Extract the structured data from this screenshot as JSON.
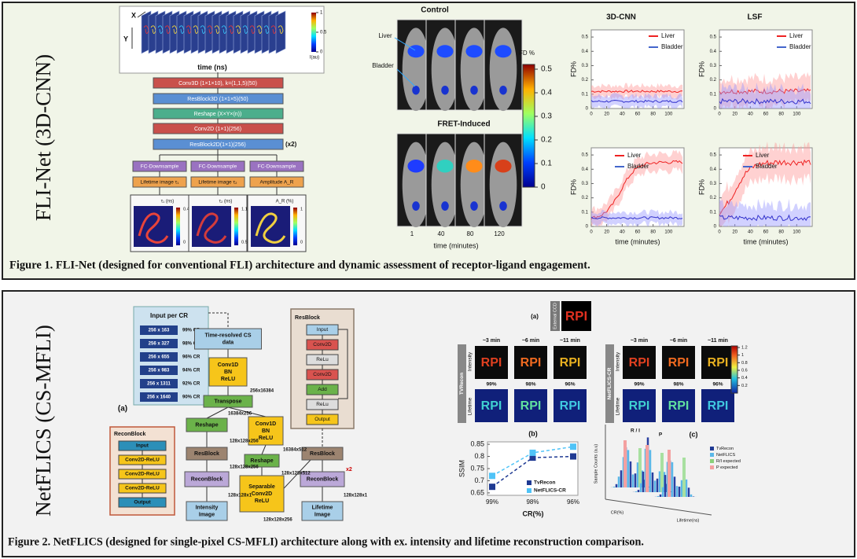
{
  "figure1": {
    "side_label": "FLI-Net (3D-CNN)",
    "caption": "Figure 1. FLI-Net (designed for conventional FLI) architecture and dynamic assessment of receptor-ligand engagement.",
    "architecture": {
      "input_axes": [
        "X",
        "Y"
      ],
      "input_xlabel": "time (ns)",
      "input_colorbar_label": "I(au)",
      "input_colorbar_ticks": [
        1,
        0.5,
        0
      ],
      "layers": [
        "Conv3D (1×1×10), k=(1,1,5)(50)",
        "ResBlock3D (1×1×5)(50)",
        "Reshape (X×Y×(n))",
        "Conv2D (1×1)(256)",
        "ResBlock2D(1×1)(256)"
      ],
      "repeat": "(x2)",
      "branches": [
        {
          "head": "FC-Downsample",
          "output": "Lifetime image τ₁",
          "map_label": "τ₁ (ns)",
          "ticks": [
            0.4,
            0
          ]
        },
        {
          "head": "FC-Downsample",
          "output": "Lifetime image τ₂",
          "map_label": "τ₂ (ns)",
          "ticks": [
            1.1,
            0.55
          ]
        },
        {
          "head": "FC-Downsample",
          "output": "Amplitude A_R",
          "map_label": "A_R (%)",
          "ticks": [
            1,
            0
          ]
        }
      ]
    },
    "imaging": {
      "control_title": "Control",
      "fret_title": "FRET-Induced",
      "organs": [
        "Liver",
        "Bladder"
      ],
      "timepoints": [
        1,
        40,
        80,
        120
      ],
      "xlabel": "time (minutes)",
      "colorbar_label": "FD %",
      "colorbar_ticks": [
        0.5,
        0.4,
        0.3,
        0.2,
        0.1,
        0
      ]
    },
    "plots": {
      "columns": [
        "3D-CNN",
        "LSF"
      ],
      "ylabel": "FD%",
      "xlabel": "time (minutes)",
      "legend": [
        "Liver",
        "Bladder"
      ],
      "yticks": [
        0,
        0.1,
        0.2,
        0.3,
        0.4,
        0.5
      ],
      "xticks": [
        0,
        20,
        40,
        60,
        80,
        100
      ]
    }
  },
  "figure2": {
    "side_label": "NetFLICS (CS-MFLI)",
    "caption": "Figure 2. NetFLICS (designed for single-pixel CS-MFLI) architecture along with ex. intensity and lifetime reconstruction comparison.",
    "input_table": {
      "title": "Input per CR",
      "rows": [
        [
          "256 x 163",
          "99% CR"
        ],
        [
          "256 x 327",
          "98% CR"
        ],
        [
          "256 x 655",
          "96% CR"
        ],
        [
          "256 x 983",
          "94% CR"
        ],
        [
          "256 x 1311",
          "92% CR"
        ],
        [
          "256 x 1640",
          "90% CR"
        ]
      ]
    },
    "network": {
      "panel_label": "(a)",
      "nodes": [
        [
          "Time-resolved CS",
          "data"
        ],
        [
          "Conv1D",
          "BN",
          "ReLU"
        ],
        [
          "Transpose"
        ],
        [
          "Reshape"
        ],
        [
          "Conv1D",
          "BN",
          "ReLU"
        ],
        [
          "ResBlock"
        ],
        [
          "Reshape"
        ],
        [
          "ReconBlock"
        ],
        [
          "Separable",
          "Conv2D",
          "ReLU"
        ],
        [
          "Intensity",
          "Image"
        ],
        [
          "ResBlock"
        ],
        [
          "ReconBlock"
        ],
        [
          "Lifetime",
          "Image"
        ]
      ],
      "dims": [
        "256x16384",
        "16384x256",
        "128x128x256",
        "16384x512",
        "128x128x256",
        "128x128x512",
        "128x128x1",
        "128x128x256",
        "128x128x1"
      ],
      "repeat": "x2"
    },
    "reconblock": {
      "title": "ReconBlock",
      "layers": [
        "Input",
        "Conv2D-ReLU",
        "Conv2D-ReLU",
        "Conv2D-ReLU",
        "Output"
      ]
    },
    "resblock": {
      "title": "ResBlock",
      "layers": [
        "Input",
        "Conv2D",
        "ReLu",
        "Conv2D",
        "Add",
        "ReLu",
        "Output"
      ]
    },
    "reconstruction": {
      "panel_label": "(a)",
      "ccd_label": "External CCD",
      "image_text": "RPI",
      "times": [
        "~3 min",
        "~6 min",
        "~11 min"
      ],
      "methods": [
        "TVRecon",
        "NetFLICS-CR"
      ],
      "rows": [
        "Intensity",
        "Lifetime"
      ],
      "cr": [
        "99%",
        "98%",
        "96%"
      ],
      "colorbar_ticks": [
        1.2,
        1,
        0.8,
        0.6,
        0.4,
        0.2
      ]
    },
    "ssim_chart": {
      "type": "line",
      "panel_label": "(b)",
      "ylabel": "SSIM",
      "xlabel": "CR(%)",
      "categories": [
        "99%",
        "98%",
        "96%"
      ],
      "series": [
        {
          "name": "TvRecon",
          "color": "#1f3a93",
          "values": [
            0.675,
            0.795,
            0.8
          ]
        },
        {
          "name": "NetFLICS-CR",
          "color": "#4fc3f7",
          "values": [
            0.72,
            0.815,
            0.84
          ]
        }
      ],
      "ylim": [
        0.64,
        0.86
      ],
      "yticks": [
        0.65,
        0.7,
        0.75,
        0.8,
        0.85
      ]
    },
    "histogram": {
      "panel_label": "(c)",
      "ylabel": "Sample Counts (a.u)",
      "xlabel": "Lifetime(ns)",
      "depth_label": "CR(%)",
      "peaks": [
        "R / I",
        "P"
      ],
      "legend": [
        "TvRecon",
        "NetFLICS",
        "R/I expected",
        "P expected"
      ]
    }
  }
}
